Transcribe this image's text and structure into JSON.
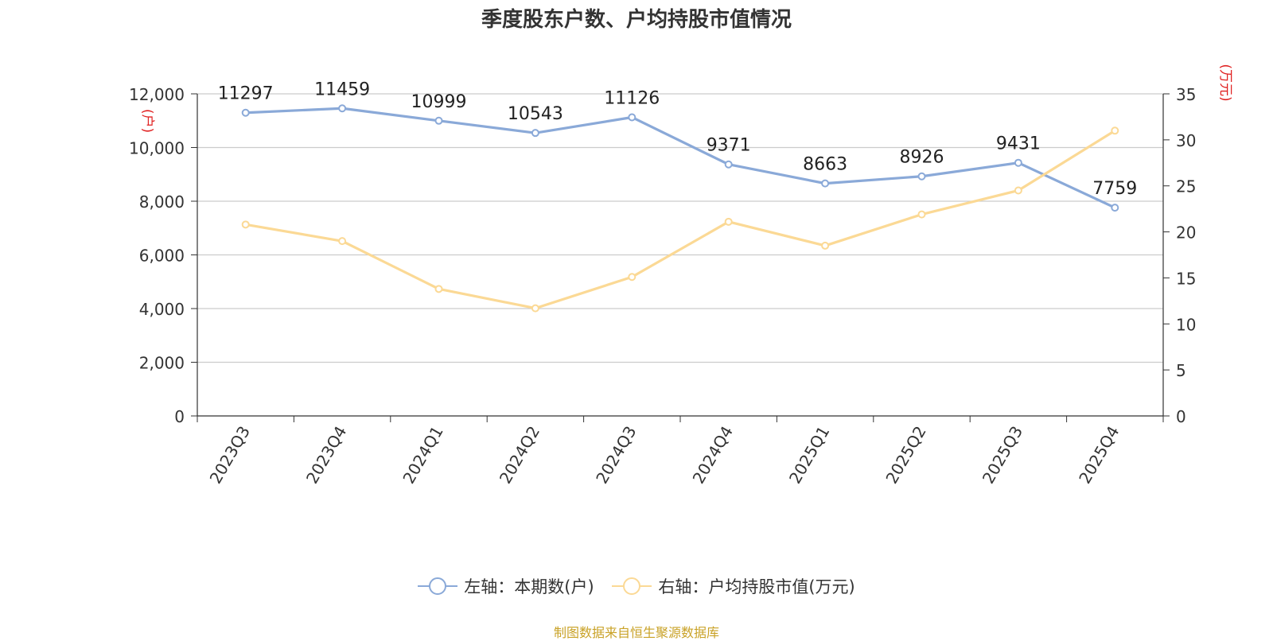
{
  "chart_data": {
    "type": "line",
    "title": "季度股东户数、户均持股市值情况",
    "categories": [
      "2023Q3",
      "2023Q4",
      "2024Q1",
      "2024Q2",
      "2024Q3",
      "2024Q4",
      "2025Q1",
      "2025Q2",
      "2025Q3",
      "2025Q4"
    ],
    "left_axis": {
      "unit_label": "(户)",
      "ylim": [
        0,
        12000
      ],
      "ticks": [
        0,
        2000,
        4000,
        6000,
        8000,
        10000,
        12000
      ],
      "tick_labels": [
        "0",
        "2,000",
        "4,000",
        "6,000",
        "8,000",
        "10,000",
        "12,000"
      ]
    },
    "right_axis": {
      "unit_label": "(万元)",
      "ylim": [
        0,
        35
      ],
      "ticks": [
        0,
        5,
        10,
        15,
        20,
        25,
        30,
        35
      ],
      "tick_labels": [
        "0",
        "5",
        "10",
        "15",
        "20",
        "25",
        "30",
        "35"
      ]
    },
    "series": [
      {
        "name": "左轴：本期数(户)",
        "axis": "left",
        "color": "#8aa9d8",
        "values": [
          11297,
          11459,
          10999,
          10543,
          11126,
          9371,
          8663,
          8926,
          9431,
          7759
        ],
        "data_labels": [
          "11297",
          "11459",
          "10999",
          "10543",
          "11126",
          "9371",
          "8663",
          "8926",
          "9431",
          "7759"
        ]
      },
      {
        "name": "右轴：户均持股市值(万元)",
        "axis": "right",
        "color": "#fbd995",
        "values": [
          20.8,
          19.0,
          13.8,
          11.7,
          15.1,
          21.1,
          18.5,
          21.9,
          24.5,
          31.0
        ]
      }
    ],
    "grid": true,
    "legend_position": "bottom",
    "source": "制图数据来自恒生聚源数据库"
  }
}
